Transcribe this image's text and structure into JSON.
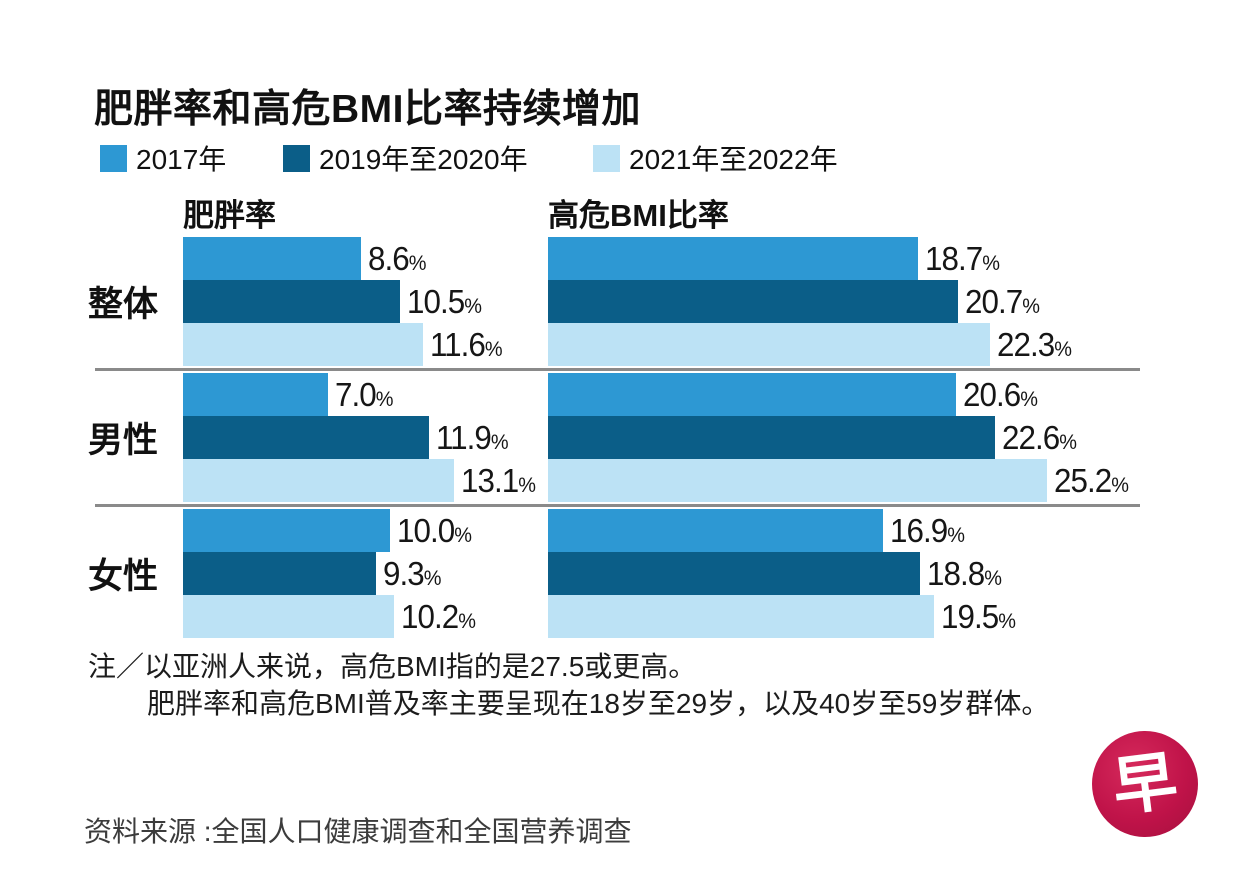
{
  "title": "肥胖率和高危BMI比率持续增加",
  "legend": {
    "items": [
      {
        "label": "2017年",
        "color": "#2D98D3"
      },
      {
        "label": "2019年至2020年",
        "color": "#0B5E88"
      },
      {
        "label": "2021年至2022年",
        "color": "#BCE2F5"
      }
    ]
  },
  "chart_data": {
    "type": "bar",
    "orientation": "horizontal",
    "title": "肥胖率和高危BMI比率持续增加",
    "series": [
      "2017年",
      "2019年至2020年",
      "2021年至2022年"
    ],
    "series_colors": [
      "#2D98D3",
      "#0B5E88",
      "#BCE2F5"
    ],
    "row_groups": [
      "整体",
      "男性",
      "女性"
    ],
    "value_suffix": "%",
    "panels": [
      {
        "title": "肥胖率",
        "unit": "%",
        "rows": [
          {
            "group": "整体",
            "values": [
              "8.6",
              "10.5",
              "11.6"
            ]
          },
          {
            "group": "男性",
            "values": [
              "7.0",
              "11.9",
              "13.1"
            ]
          },
          {
            "group": "女性",
            "values": [
              "10.0",
              "9.3",
              "10.2"
            ]
          }
        ]
      },
      {
        "title": "高危BMI比率",
        "unit": "%",
        "rows": [
          {
            "group": "整体",
            "values": [
              "18.7",
              "20.7",
              "22.3"
            ]
          },
          {
            "group": "男性",
            "values": [
              "20.6",
              "22.6",
              "25.2"
            ]
          },
          {
            "group": "女性",
            "values": [
              "16.9",
              "18.8",
              "19.5"
            ]
          }
        ]
      }
    ]
  },
  "notes": {
    "line1": "注／以亚洲人来说，高危BMI指的是27.5或更高。",
    "line2": "肥胖率和高危BMI普及率主要呈现在18岁至29岁，以及40岁至59岁群体。"
  },
  "source": "资料来源 :全国人口健康调查和全国营养调查",
  "logo": {
    "char": "早",
    "color": "#C01349"
  }
}
